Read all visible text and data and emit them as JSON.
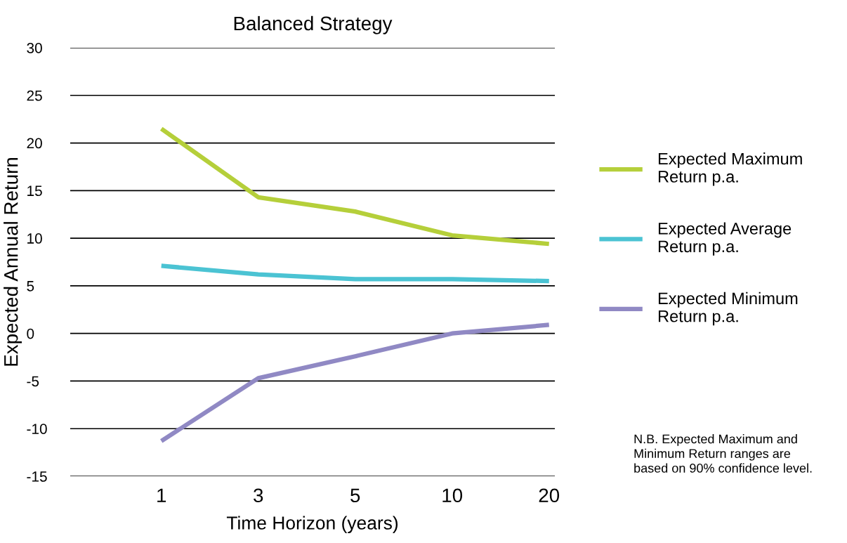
{
  "chart_data": {
    "type": "line",
    "title": "Balanced Strategy",
    "xlabel": "Time Horizon (years)",
    "ylabel": "Expected Annual Return",
    "categories": [
      "1",
      "3",
      "5",
      "10",
      "20"
    ],
    "series": [
      {
        "name": "Expected Maximum\nReturn p.a.",
        "color": "#b5cf3a",
        "values": [
          21.5,
          14.3,
          12.8,
          10.3,
          9.4
        ]
      },
      {
        "name": "Expected Average\nReturn p.a.",
        "color": "#4bc3d3",
        "values": [
          7.1,
          6.2,
          5.7,
          5.7,
          5.5
        ]
      },
      {
        "name": "Expected Minimum\nReturn p.a.",
        "color": "#9089c4",
        "values": [
          -11.3,
          -4.7,
          -2.4,
          0,
          0.9
        ]
      }
    ],
    "ylim": [
      -15,
      30
    ],
    "yticks": [
      -15,
      -10,
      -5,
      0,
      5,
      10,
      15,
      20,
      25,
      30
    ],
    "grid": "y",
    "legend": "right",
    "marker": "none",
    "line_style": "solid",
    "annotations": [
      "N.B. Expected Maximum and\nMinimum Return ranges are\nbased on 90% confidence level."
    ]
  }
}
